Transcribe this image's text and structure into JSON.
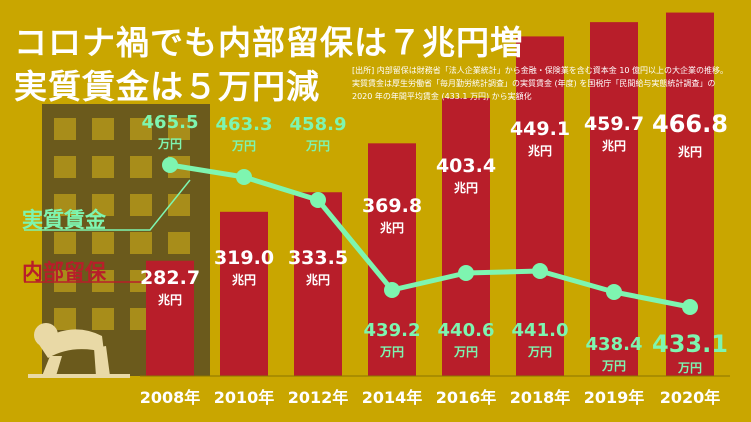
{
  "title_line1": "コロナ禍でも内部留保は７兆円増",
  "title_line2": "実質賃金は５万円減",
  "source_note": "[出所] 内部留保は財務省「法人企業統計」から金融・保険業を含む資本金 10 億円以上の大企業の推移。実質賃金は厚生労働省「毎月勤労統計調査」の実質賃金 (年度) を国税庁「民間給与実態統計調査」の 2020 年の年間平均賃金 (433.1 万円) から実額化",
  "colors": {
    "background": "#c9a600",
    "bar": "#b81e2a",
    "line": "#7ef5b0",
    "building": "#6b5a1c",
    "figure": "#e9d9a6"
  },
  "chart_data": {
    "type": "bar",
    "categories": [
      "2008年",
      "2010年",
      "2012年",
      "2014年",
      "2016年",
      "2018年",
      "2019年",
      "2020年"
    ],
    "series": [
      {
        "name": "内部留保",
        "type": "bar",
        "values": [
          282.7,
          319.0,
          333.5,
          369.8,
          403.4,
          449.1,
          459.7,
          466.8
        ],
        "unit": "兆円"
      },
      {
        "name": "実質賃金",
        "type": "line",
        "values": [
          465.5,
          463.3,
          458.9,
          439.2,
          440.6,
          441.0,
          438.4,
          433.1
        ],
        "unit": "万円"
      }
    ],
    "title": "コロナ禍でも内部留保は７兆円増 実質賃金は５万円減"
  }
}
